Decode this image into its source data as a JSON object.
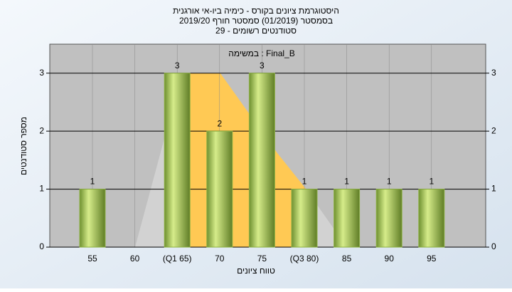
{
  "chart_data": {
    "type": "bar",
    "title": "היסטוגרמת ציונים בקורס - כימיה ביו-אי אורגנית",
    "subtitle": "בסמסטר (01/2019)  סמסטר חורף 2019/20",
    "subtitle2": "סטודנטים רשומים - 29",
    "annotation": "במשימה : Final_B",
    "x_label": "טווח ציונים",
    "y_label": "מספר סטודנטים",
    "categories": [
      "55",
      "60",
      "(Q1 65)",
      "70",
      "75",
      "(Q3 80)",
      "85",
      "90",
      "95"
    ],
    "values": [
      1,
      0,
      3,
      2,
      3,
      1,
      1,
      1,
      1
    ],
    "color": "#8db144",
    "ylim": [
      0,
      3.5
    ],
    "yticks": [
      0,
      1,
      2,
      3
    ],
    "y2lim": [
      0,
      3.5
    ],
    "y2ticks": [
      0,
      1,
      2,
      3
    ],
    "grid": true
  }
}
